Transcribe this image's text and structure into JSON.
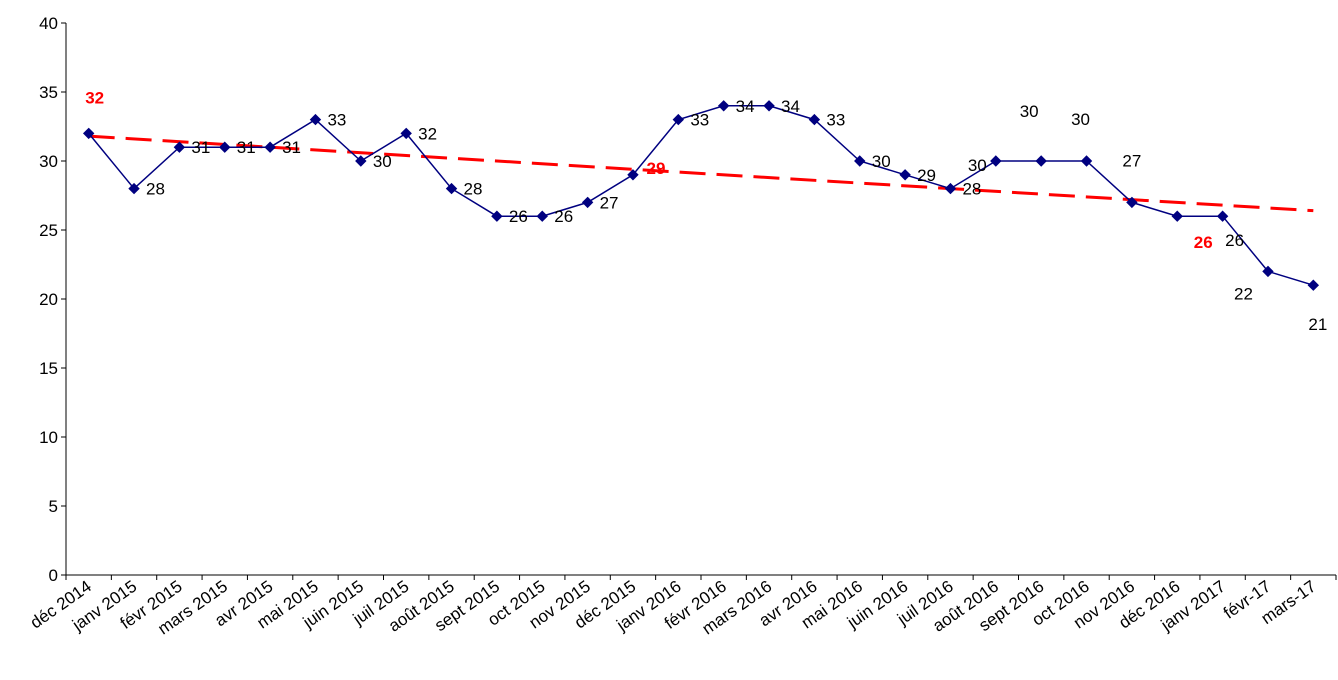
{
  "chart_data": {
    "type": "line",
    "title": "",
    "xlabel": "",
    "ylabel": "",
    "ylim": [
      0,
      40
    ],
    "yticks": [
      0,
      5,
      10,
      15,
      20,
      25,
      30,
      35,
      40
    ],
    "grid": false,
    "legend": "none",
    "categories": [
      "déc 2014",
      "janv 2015",
      "févr 2015",
      "mars 2015",
      "avr 2015",
      "mai 2015",
      "juin 2015",
      "juil 2015",
      "août 2015",
      "sept 2015",
      "oct 2015",
      "nov 2015",
      "déc 2015",
      "janv 2016",
      "févr 2016",
      "mars 2016",
      "avr 2016",
      "mai 2016",
      "juin 2016",
      "juil 2016",
      "août 2016",
      "sept 2016",
      "oct 2016",
      "nov 2016",
      "déc 2016",
      "janv 2017",
      "févr-17",
      "mars-17"
    ],
    "series": [
      {
        "values": [
          32,
          28,
          31,
          31,
          31,
          33,
          30,
          32,
          28,
          26,
          26,
          27,
          29,
          33,
          34,
          34,
          33,
          30,
          29,
          28,
          30,
          30,
          30,
          27,
          26,
          26,
          22,
          21
        ],
        "color": "#000080",
        "marker": "diamond"
      }
    ],
    "trendline": {
      "type": "linear",
      "start_value": 31.8,
      "end_value": 26.4,
      "color": "#ff0000",
      "style": "dashed"
    },
    "highlight_labels": [
      {
        "category": "déc 2014",
        "value": 32,
        "color": "#ff0000"
      },
      {
        "category": "déc 2015",
        "value": 29,
        "color": "#ff0000"
      },
      {
        "category": "déc 2016",
        "value": 26,
        "color": "#ff0000"
      }
    ]
  }
}
